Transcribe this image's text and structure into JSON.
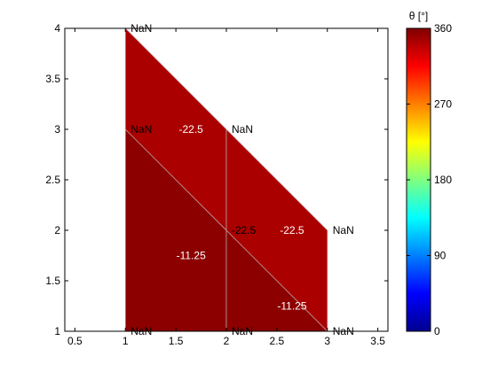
{
  "chart_data": {
    "type": "patch",
    "xlim": [
      0.4,
      3.6
    ],
    "ylim": [
      1,
      4
    ],
    "xticks": [
      "0.5",
      "1",
      "1.5",
      "2",
      "2.5",
      "3",
      "3.5"
    ],
    "xtick_values": [
      0.5,
      1,
      1.5,
      2,
      2.5,
      3,
      3.5
    ],
    "yticks": [
      "1",
      "1.5",
      "2",
      "2.5",
      "3",
      "3.5",
      "4"
    ],
    "ytick_values": [
      1,
      1.5,
      2,
      2.5,
      3,
      3.5,
      4
    ],
    "grid": false,
    "cells": [
      {
        "poly": [
          [
            1,
            1
          ],
          [
            1,
            3
          ],
          [
            2,
            2
          ],
          [
            2,
            1
          ]
        ],
        "label": "-11.25",
        "label_at": [
          1.65,
          1.75
        ],
        "color": "#8c0000"
      },
      {
        "poly": [
          [
            2,
            1
          ],
          [
            2,
            2
          ],
          [
            3,
            1
          ]
        ],
        "label": "-11.25",
        "label_at": [
          2.65,
          1.25
        ],
        "color": "#8c0000"
      },
      {
        "poly": [
          [
            1,
            3
          ],
          [
            1,
            4
          ],
          [
            2,
            3
          ],
          [
            2,
            2
          ]
        ],
        "label": "-22.5",
        "label_at": [
          1.65,
          3.0
        ],
        "color": "#ab0000"
      },
      {
        "poly": [
          [
            2,
            2
          ],
          [
            2,
            3
          ],
          [
            3,
            2
          ],
          [
            3,
            1
          ]
        ],
        "label": "-22.5",
        "label_at": [
          2.65,
          2.0
        ],
        "color": "#ab0000"
      }
    ],
    "node_labels": [
      {
        "text": "NaN",
        "at": [
          1,
          4
        ]
      },
      {
        "text": "NaN",
        "at": [
          1,
          3
        ]
      },
      {
        "text": "NaN",
        "at": [
          2,
          3
        ]
      },
      {
        "text": "-22.5",
        "at": [
          2,
          2
        ]
      },
      {
        "text": "NaN",
        "at": [
          3,
          2
        ]
      },
      {
        "text": "NaN",
        "at": [
          1,
          1
        ]
      },
      {
        "text": "NaN",
        "at": [
          2,
          1
        ]
      },
      {
        "text": "NaN",
        "at": [
          3,
          1
        ]
      }
    ],
    "colorbar": {
      "title": "θ [°]",
      "range": [
        0,
        360
      ],
      "ticks": [
        "0",
        "90",
        "180",
        "270",
        "360"
      ],
      "tick_values": [
        0,
        90,
        180,
        270,
        360
      ],
      "colormap": "jet"
    }
  }
}
